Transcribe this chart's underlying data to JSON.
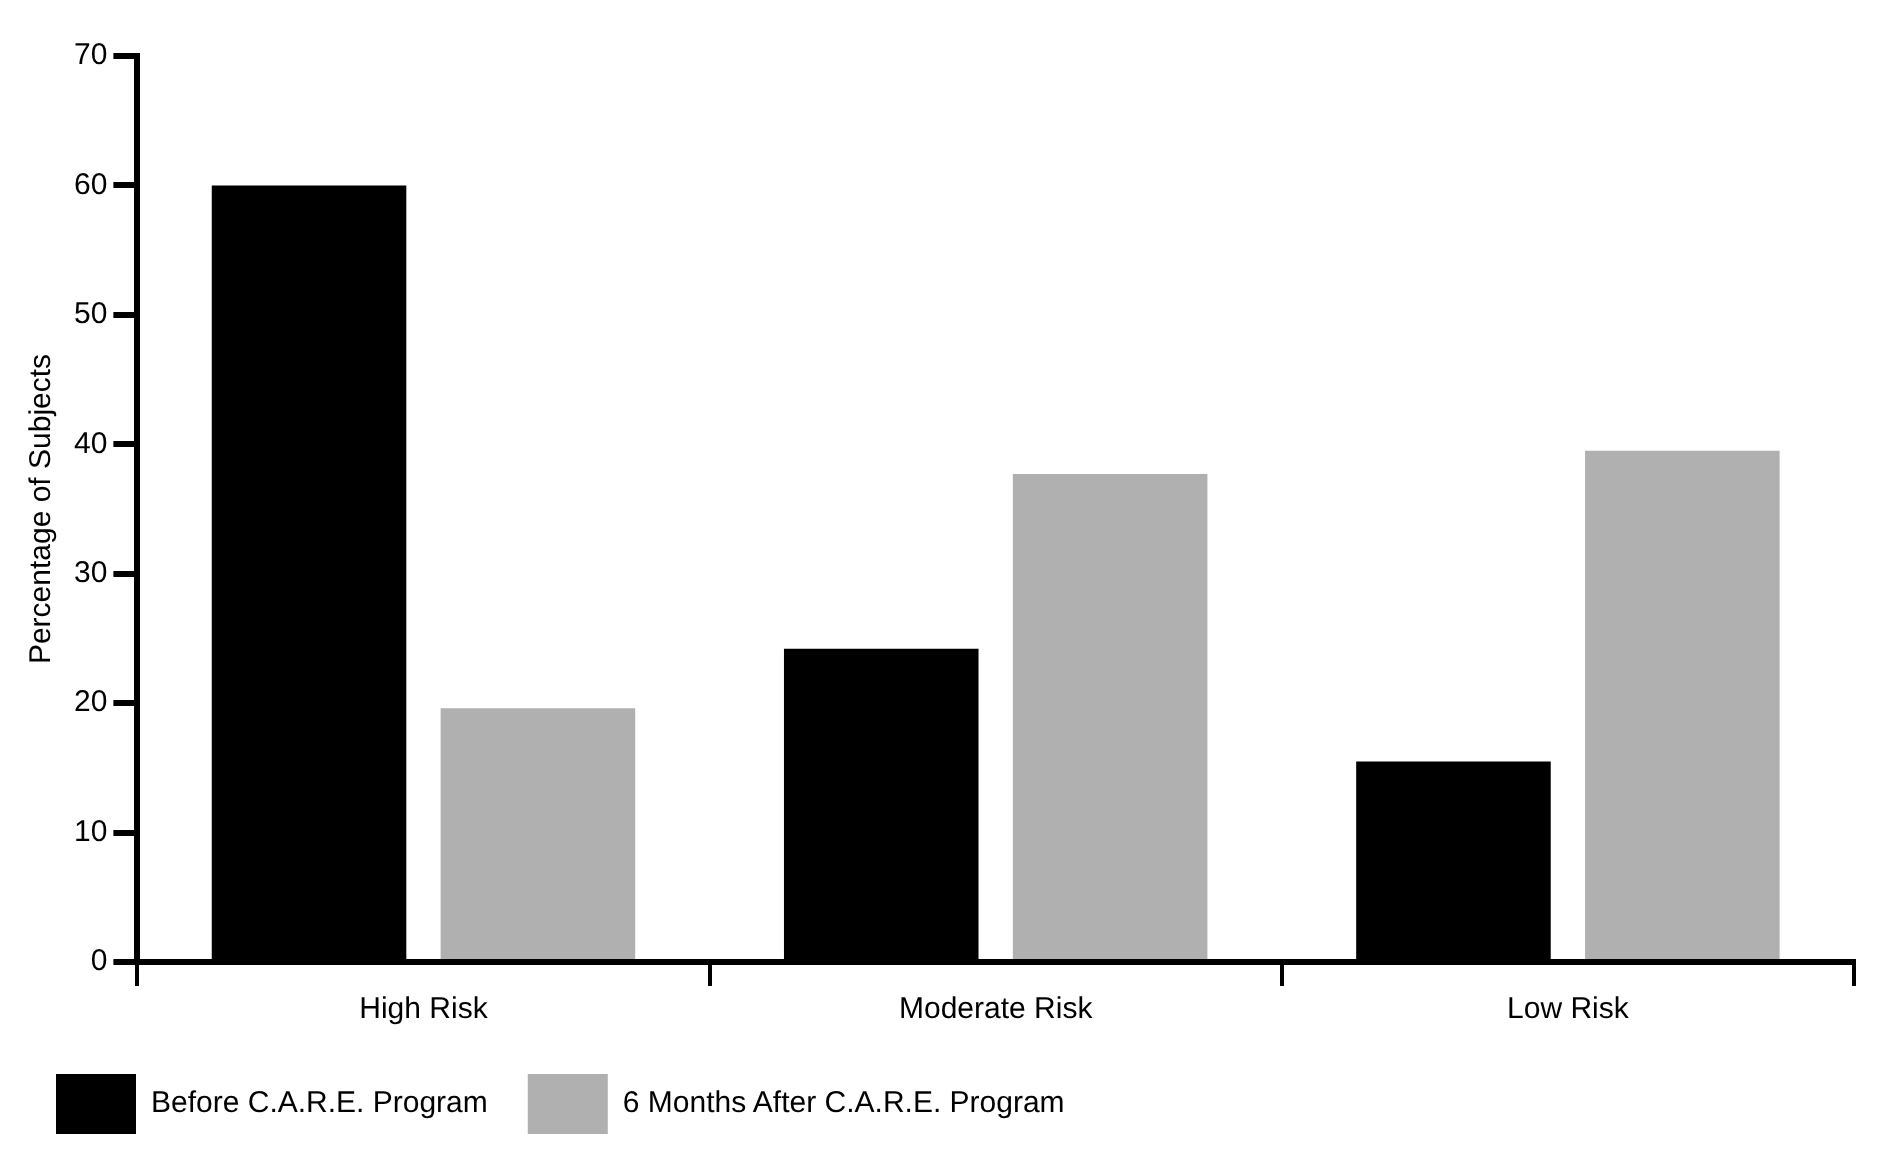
{
  "chart_data": {
    "type": "bar",
    "ylabel": "Percentage of Subjects",
    "categories": [
      "High Risk",
      "Moderate Risk",
      "Low Risk"
    ],
    "series": [
      {
        "name": "Before C.A.R.E. Program",
        "color": "#000000",
        "values": [
          60,
          24.2,
          15.5
        ]
      },
      {
        "name": "6 Months After C.A.R.E. Program",
        "color": "#b0b0b0",
        "values": [
          19.6,
          37.7,
          39.5
        ]
      }
    ],
    "ylim": [
      0,
      70
    ],
    "yticks": [
      0,
      10,
      20,
      30,
      40,
      50,
      60,
      70
    ],
    "grid": false,
    "legend": "bottom left"
  }
}
